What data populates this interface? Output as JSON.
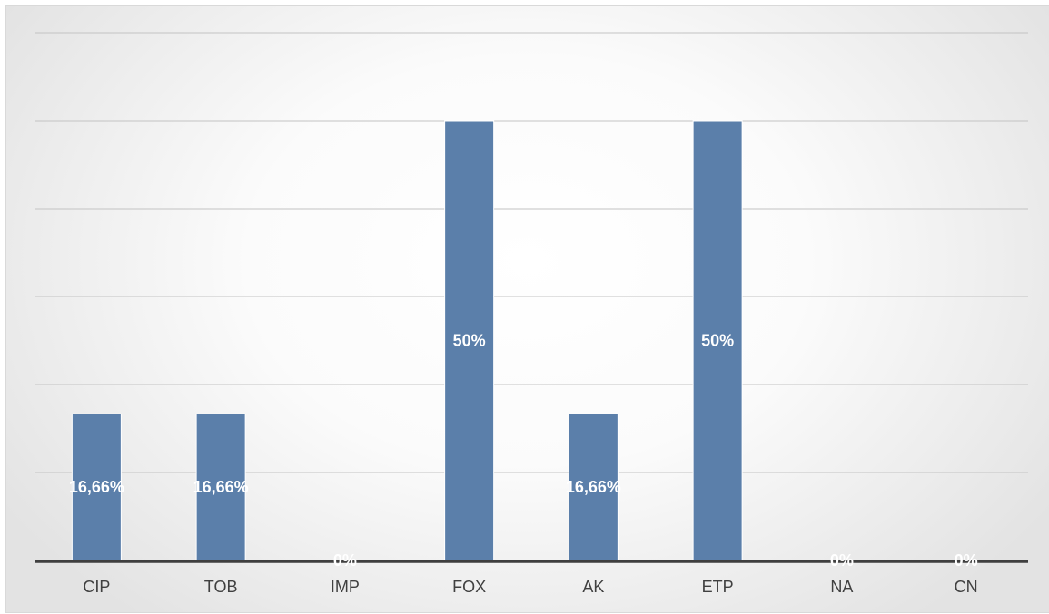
{
  "chart_data": {
    "type": "bar",
    "categories": [
      "CIP",
      "TOB",
      "IMP",
      "FOX",
      "AK",
      "ETP",
      "NA",
      "CN"
    ],
    "values": [
      16.66,
      16.66,
      0,
      50,
      16.66,
      50,
      0,
      0
    ],
    "data_labels": [
      "16,66%",
      "16,66%",
      "0%",
      "50%",
      "16,66%",
      "50%",
      "0%",
      "0%"
    ],
    "ylim": [
      0,
      60
    ],
    "grid": true,
    "legend": "none",
    "bar_color": "#5b7faa"
  }
}
